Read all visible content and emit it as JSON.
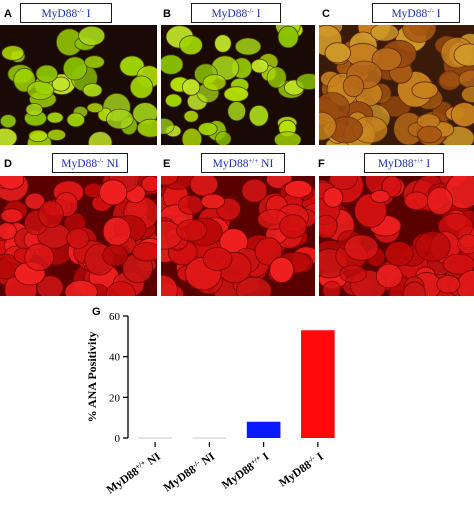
{
  "panels": [
    {
      "letter": "A",
      "title_base": "MyD88",
      "title_sup": "-/-",
      "title_suffix": " I",
      "stain": "green"
    },
    {
      "letter": "B",
      "title_base": "MyD88",
      "title_sup": "-/-",
      "title_suffix": " I",
      "stain": "green"
    },
    {
      "letter": "C",
      "title_base": "MyD88",
      "title_sup": "-/-",
      "title_suffix": " I",
      "stain": "mixed"
    },
    {
      "letter": "D",
      "title_base": "MyD88",
      "title_sup": "-/-",
      "title_suffix": " NI",
      "stain": "red"
    },
    {
      "letter": "E",
      "title_base": "MyD88",
      "title_sup": "+/+",
      "title_suffix": " NI",
      "stain": "red"
    },
    {
      "letter": "F",
      "title_base": "MyD88",
      "title_sup": "+/+",
      "title_suffix": " I",
      "stain": "red"
    }
  ],
  "chart_panel_letter": "G",
  "colors": {
    "bar_blue": "#0a1aff",
    "bar_red": "#ff0a0a",
    "title_text": "#1a2fb0"
  },
  "chart_data": {
    "type": "bar",
    "title": "",
    "xlabel": "",
    "ylabel": "% ANA Positivity",
    "ylim": [
      0,
      60
    ],
    "yticks": [
      0,
      20,
      40,
      60
    ],
    "categories": [
      "MyD88+/+ NI",
      "MyD88-/- NI",
      "MyD88+/+ I",
      "MyD88-/- I"
    ],
    "category_labels": [
      {
        "base": "MyD88",
        "sup": "+/+",
        "suffix": " NI"
      },
      {
        "base": "MyD88",
        "sup": "-/-",
        "suffix": " NI"
      },
      {
        "base": "MyD88",
        "sup": "+/+",
        "suffix": " I"
      },
      {
        "base": "MyD88",
        "sup": "-/-",
        "suffix": " I"
      }
    ],
    "values": [
      0,
      0,
      8,
      53
    ],
    "bar_colors": [
      "#c8c8c8",
      "#c8c8c8",
      "#0a1aff",
      "#ff0a0a"
    ]
  }
}
